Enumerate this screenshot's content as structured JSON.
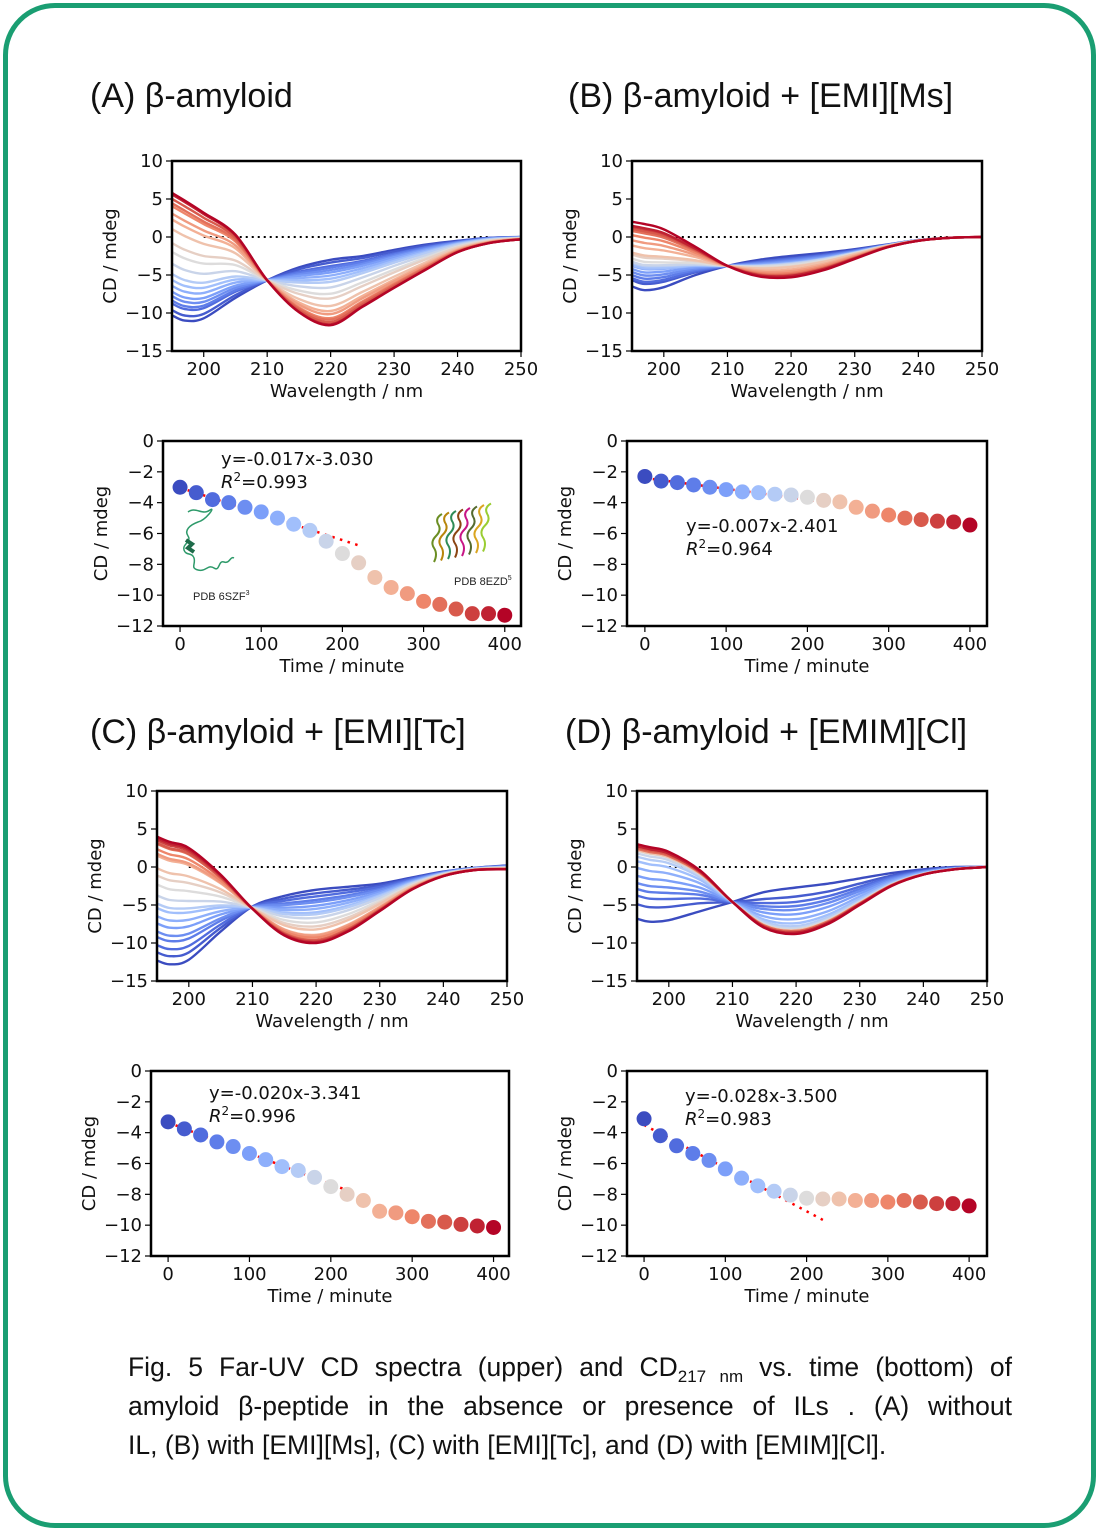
{
  "colors": {
    "frame": "#1a9e72",
    "fit_line": "#ff0000",
    "colormap": "coolwarm",
    "colormap_anchors": [
      "#3b4cc0",
      "#7b9ff9",
      "#c0d4f5",
      "#dddcdc",
      "#f2cbb7",
      "#ee8468",
      "#b40426"
    ]
  },
  "caption": {
    "line1_a": "Fig. 5 Far-UV CD spectra (upper) and CD",
    "line1_sub": "217 nm",
    "line1_b": " vs. time  (bottom) of",
    "line2": "amyloid β-peptide in the absence or presence of ILs . (A) without",
    "line3": "IL, (B) with [EMI][Ms], (C) with [EMI][Tc], and (D) with [EMIM][Cl]."
  },
  "insets": {
    "left_label": "PDB 6SZF",
    "left_sup": "3",
    "right_label": "PDB 8EZD",
    "right_sup": "5"
  },
  "chart_data": [
    {
      "panel": "A",
      "title": "(A) β-amyloid",
      "spectra": {
        "type": "line",
        "xlabel": "Wavelength / nm",
        "ylabel": "CD / mdeg",
        "xlim": [
          195,
          250
        ],
        "ylim": [
          -15,
          10
        ],
        "x_ticks": [
          "200",
          "210",
          "220",
          "230",
          "240",
          "250"
        ],
        "y_ticks": [
          "10",
          "5",
          "0",
          "−5",
          "−10",
          "−15"
        ],
        "zero_reference": "dotted",
        "wavelengths": [
          195,
          197,
          200,
          205,
          210,
          215,
          220,
          225,
          230,
          235,
          240,
          245,
          250
        ],
        "first_curve": [
          -10.3,
          -11,
          -10.7,
          -8.0,
          -5.7,
          -4.0,
          -3.0,
          -2.5,
          -1.7,
          -1.0,
          -0.5,
          -0.1,
          0
        ],
        "last_curve": [
          5.8,
          4.8,
          3.2,
          0.3,
          -5.7,
          -9.9,
          -11.6,
          -9.2,
          -6.7,
          -4.3,
          -2.0,
          -0.8,
          -0.3
        ],
        "curve_count": 21
      },
      "timecourse": {
        "type": "scatter",
        "xlabel": "Time / minute",
        "ylabel": "CD / mdeg",
        "xlim": [
          -21,
          420
        ],
        "ylim": [
          -12,
          0
        ],
        "x_ticks": [
          "0",
          "100",
          "200",
          "300",
          "400"
        ],
        "y_ticks": [
          "0",
          "−2",
          "−4",
          "−6",
          "−8",
          "−10",
          "−12"
        ],
        "x": [
          0,
          20,
          40,
          60,
          80,
          100,
          120,
          140,
          160,
          180,
          200,
          220,
          240,
          260,
          280,
          300,
          320,
          340,
          360,
          380,
          400
        ],
        "y": [
          -3.0,
          -3.35,
          -3.8,
          -4.0,
          -4.3,
          -4.6,
          -5.0,
          -5.4,
          -5.8,
          -6.5,
          -7.3,
          -7.9,
          -8.85,
          -9.5,
          -9.9,
          -10.4,
          -10.6,
          -10.9,
          -11.2,
          -11.2,
          -11.3
        ],
        "fit": {
          "slope": -0.017,
          "intercept": -3.03,
          "x_range": [
            0,
            220
          ],
          "equation": "y=-0.017x-3.030",
          "r2_label": "R",
          "r2_value": "=0.993"
        }
      }
    },
    {
      "panel": "B",
      "title": "(B) β-amyloid + [EMI][Ms]",
      "spectra": {
        "type": "line",
        "xlabel": "Wavelength / nm",
        "ylabel": "CD / mdeg",
        "xlim": [
          195,
          250
        ],
        "ylim": [
          -15,
          10
        ],
        "x_ticks": [
          "200",
          "210",
          "220",
          "230",
          "240",
          "250"
        ],
        "y_ticks": [
          "10",
          "5",
          "0",
          "−5",
          "−10",
          "−15"
        ],
        "zero_reference": "dotted",
        "wavelengths": [
          195,
          197,
          200,
          205,
          210,
          215,
          220,
          225,
          230,
          235,
          240,
          245,
          250
        ],
        "first_curve": [
          -6.5,
          -7,
          -6.6,
          -5.0,
          -3.8,
          -3.0,
          -2.5,
          -2.1,
          -1.6,
          -1.0,
          -0.4,
          -0.1,
          0
        ],
        "last_curve": [
          2.0,
          1.7,
          1.0,
          -1.3,
          -3.8,
          -5.2,
          -5.3,
          -4.4,
          -2.9,
          -1.4,
          -0.5,
          -0.1,
          0
        ],
        "curve_count": 21
      },
      "timecourse": {
        "type": "scatter",
        "xlabel": "Time / minute",
        "ylabel": "CD / mdeg",
        "xlim": [
          -22,
          421
        ],
        "ylim": [
          -12,
          0
        ],
        "x_ticks": [
          "0",
          "100",
          "200",
          "300",
          "400"
        ],
        "y_ticks": [
          "0",
          "−2",
          "−4",
          "−6",
          "−8",
          "−10",
          "−12"
        ],
        "x": [
          0,
          20,
          40,
          60,
          80,
          100,
          120,
          140,
          160,
          180,
          200,
          220,
          240,
          260,
          280,
          300,
          320,
          340,
          360,
          380,
          400
        ],
        "y": [
          -2.3,
          -2.6,
          -2.7,
          -2.85,
          -3.0,
          -3.15,
          -3.3,
          -3.35,
          -3.45,
          -3.5,
          -3.65,
          -3.85,
          -3.95,
          -4.3,
          -4.55,
          -4.8,
          -5.0,
          -5.1,
          -5.2,
          -5.25,
          -5.45
        ],
        "fit": {
          "slope": -0.007,
          "intercept": -2.401,
          "x_range": [
            0,
            220
          ],
          "equation": "y=-0.007x-2.401",
          "r2_label": "R",
          "r2_value": "=0.964"
        }
      }
    },
    {
      "panel": "C",
      "title": "(C) β-amyloid + [EMI][Tc]",
      "spectra": {
        "type": "line",
        "xlabel": "Wavelength / nm",
        "ylabel": "CD / mdeg",
        "xlim": [
          195,
          250
        ],
        "ylim": [
          -15,
          10
        ],
        "x_ticks": [
          "200",
          "210",
          "220",
          "230",
          "240",
          "250"
        ],
        "y_ticks": [
          "10",
          "5",
          "0",
          "−5",
          "−10",
          "−15"
        ],
        "zero_reference": "dotted",
        "wavelengths": [
          195,
          197,
          200,
          205,
          210,
          215,
          220,
          225,
          230,
          235,
          240,
          245,
          250
        ],
        "first_curve": [
          -12.3,
          -12.8,
          -12.2,
          -8.5,
          -5.2,
          -3.8,
          -3.0,
          -2.6,
          -2.2,
          -1.4,
          -0.6,
          -0.1,
          0.2
        ],
        "last_curve": [
          4.0,
          3.3,
          2.5,
          -1.0,
          -5.5,
          -9.0,
          -10.0,
          -8.5,
          -5.8,
          -3.0,
          -1.2,
          -0.4,
          -0.3
        ],
        "curve_count": 21
      },
      "timecourse": {
        "type": "scatter",
        "xlabel": "Time / minute",
        "ylabel": "CD / mdeg",
        "xlim": [
          -21,
          419
        ],
        "ylim": [
          -12,
          0
        ],
        "x_ticks": [
          "0",
          "100",
          "200",
          "300",
          "400"
        ],
        "y_ticks": [
          "0",
          "−2",
          "−4",
          "−6",
          "−8",
          "−10",
          "−12"
        ],
        "x": [
          0,
          20,
          40,
          60,
          80,
          100,
          120,
          140,
          160,
          180,
          200,
          220,
          240,
          260,
          280,
          300,
          320,
          340,
          360,
          380,
          400
        ],
        "y": [
          -3.3,
          -3.75,
          -4.15,
          -4.6,
          -4.9,
          -5.35,
          -5.75,
          -6.2,
          -6.45,
          -6.9,
          -7.5,
          -8.0,
          -8.4,
          -9.1,
          -9.2,
          -9.45,
          -9.75,
          -9.8,
          -9.95,
          -10.05,
          -10.15
        ],
        "fit": {
          "slope": -0.02,
          "intercept": -3.341,
          "x_range": [
            0,
            220
          ],
          "equation": "y=-0.020x-3.341",
          "r2_label": "R",
          "r2_value": "=0.996"
        }
      }
    },
    {
      "panel": "D",
      "title": "(D) β-amyloid + [EMIM][Cl]",
      "spectra": {
        "type": "line",
        "xlabel": "Wavelength / nm",
        "ylabel": "CD / mdeg",
        "xlim": [
          195,
          250
        ],
        "ylim": [
          -15,
          10
        ],
        "x_ticks": [
          "200",
          "210",
          "220",
          "230",
          "240",
          "250"
        ],
        "y_ticks": [
          "10",
          "5",
          "0",
          "−5",
          "−10",
          "−15"
        ],
        "zero_reference": "dotted",
        "wavelengths": [
          195,
          197,
          200,
          205,
          210,
          215,
          220,
          225,
          230,
          235,
          240,
          245,
          250
        ],
        "first_curve": [
          -6.8,
          -7.2,
          -7.0,
          -5.8,
          -4.6,
          -3.3,
          -2.7,
          -2.2,
          -1.5,
          -0.8,
          -0.3,
          0,
          0
        ],
        "last_curve": [
          3.0,
          2.6,
          2.0,
          -0.5,
          -4.6,
          -8.0,
          -8.8,
          -7.5,
          -5.0,
          -2.5,
          -1.0,
          -0.3,
          0
        ],
        "curve_count": 21
      },
      "timecourse": {
        "type": "scatter",
        "xlabel": "Time / minute",
        "ylabel": "CD / mdeg",
        "xlim": [
          -21,
          422
        ],
        "ylim": [
          -12,
          0
        ],
        "x_ticks": [
          "0",
          "100",
          "200",
          "300",
          "400"
        ],
        "y_ticks": [
          "0",
          "−2",
          "−4",
          "−6",
          "−8",
          "−10",
          "−12"
        ],
        "x": [
          0,
          20,
          40,
          60,
          80,
          100,
          120,
          140,
          160,
          180,
          200,
          220,
          240,
          260,
          280,
          300,
          320,
          340,
          360,
          380,
          400
        ],
        "y": [
          -3.1,
          -4.2,
          -4.85,
          -5.35,
          -5.8,
          -6.35,
          -6.95,
          -7.45,
          -7.8,
          -8.05,
          -8.25,
          -8.3,
          -8.3,
          -8.4,
          -8.4,
          -8.5,
          -8.4,
          -8.5,
          -8.6,
          -8.6,
          -8.75
        ],
        "fit": {
          "slope": -0.028,
          "intercept": -3.5,
          "x_range": [
            0,
            220
          ],
          "equation": "y=-0.028x-3.500",
          "r2_label": "R",
          "r2_value": "=0.983"
        }
      }
    }
  ]
}
